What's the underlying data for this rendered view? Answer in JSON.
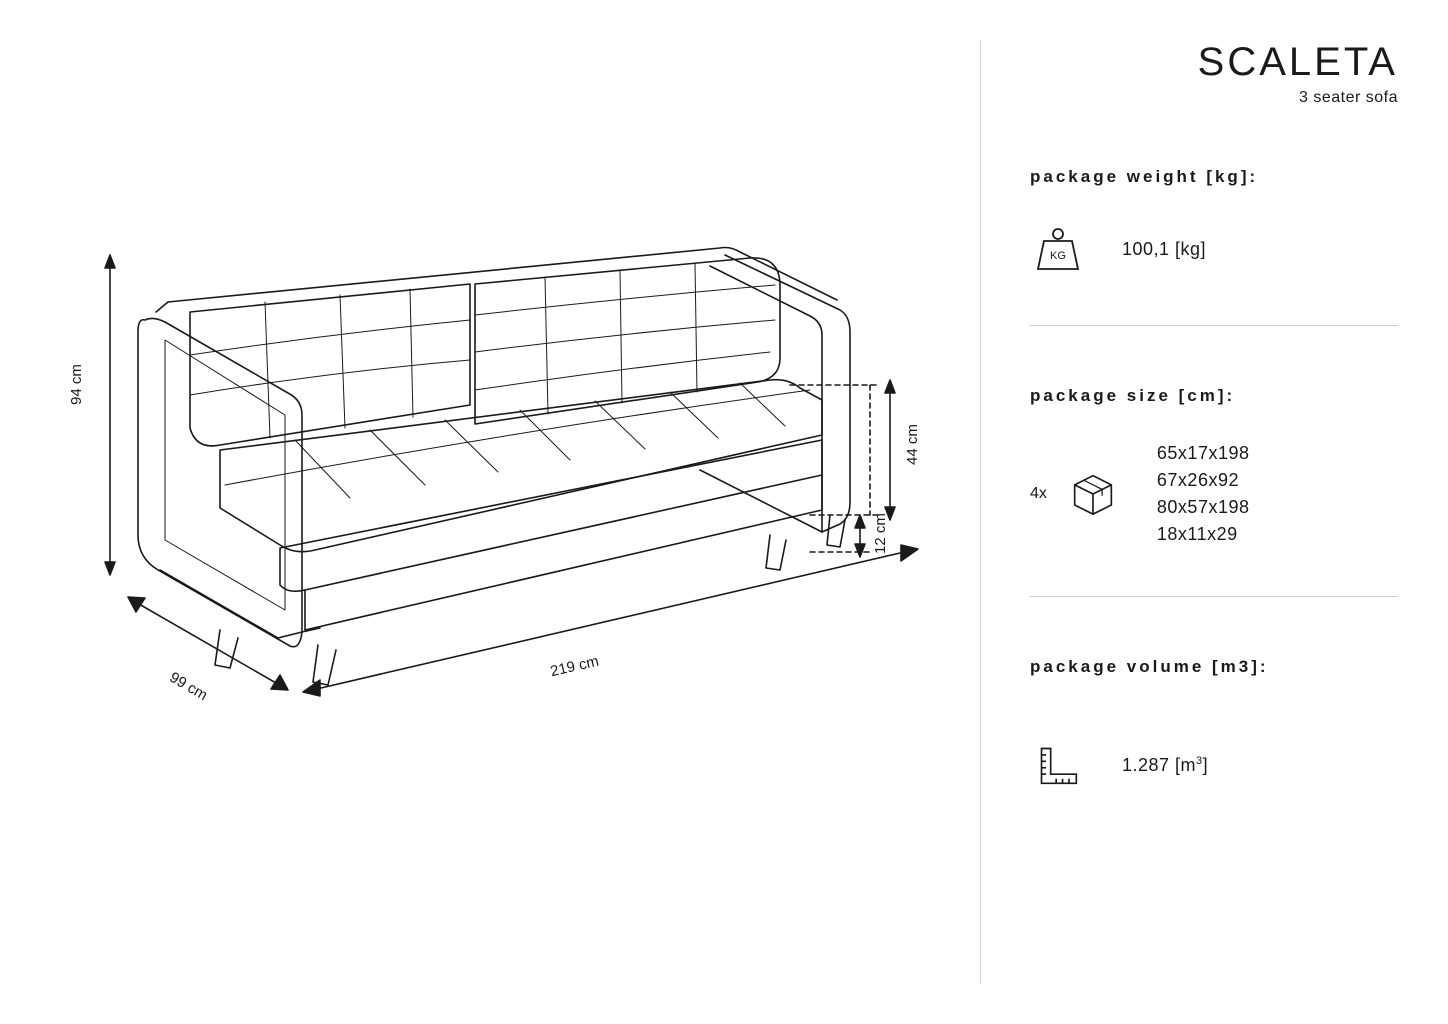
{
  "product": {
    "title": "SCALETA",
    "subtitle": "3 seater sofa"
  },
  "specs": {
    "weight": {
      "label": "package weight [kg]:",
      "value": "100,1 [kg]"
    },
    "size": {
      "label": "package size [cm]:",
      "count": "4x",
      "lines": [
        "65x17x198",
        "67x26x92",
        "80x57x198",
        "18x11x29"
      ]
    },
    "volume": {
      "label": "package volume [m3]:",
      "value": "1.287 [m",
      "value_sup": "3",
      "value_tail": "]"
    }
  },
  "dimensions": {
    "height": "94 cm",
    "depth": "99 cm",
    "width": "219 cm",
    "seat_height": "44 cm",
    "leg_height": "12 cm"
  },
  "style": {
    "stroke": "#1a1a1a",
    "stroke_light": "#666666",
    "divider": "#cfcfcf",
    "bg": "#ffffff",
    "title_fontsize": 40,
    "label_fontsize": 17,
    "value_fontsize": 18,
    "dim_fontsize": 15,
    "line_width": 1.6
  }
}
